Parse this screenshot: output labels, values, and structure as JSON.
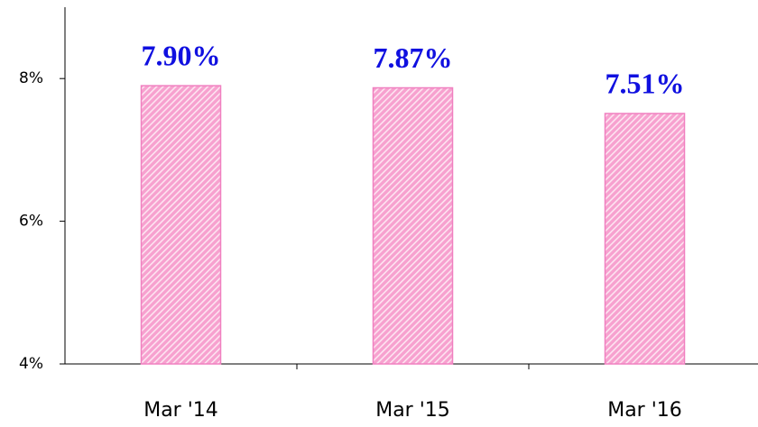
{
  "chart_data": {
    "type": "bar",
    "categories": [
      "Mar '14",
      "Mar '15",
      "Mar '16"
    ],
    "values": [
      7.9,
      7.87,
      7.51
    ],
    "value_labels": [
      "7.90%",
      "7.87%",
      "7.51%"
    ],
    "color": "#f7a1cf",
    "ylim": [
      4,
      9
    ],
    "yticks": [
      {
        "value": 4,
        "label": "4%"
      },
      {
        "value": 6,
        "label": "6%"
      },
      {
        "value": 8,
        "label": "8%"
      }
    ]
  }
}
